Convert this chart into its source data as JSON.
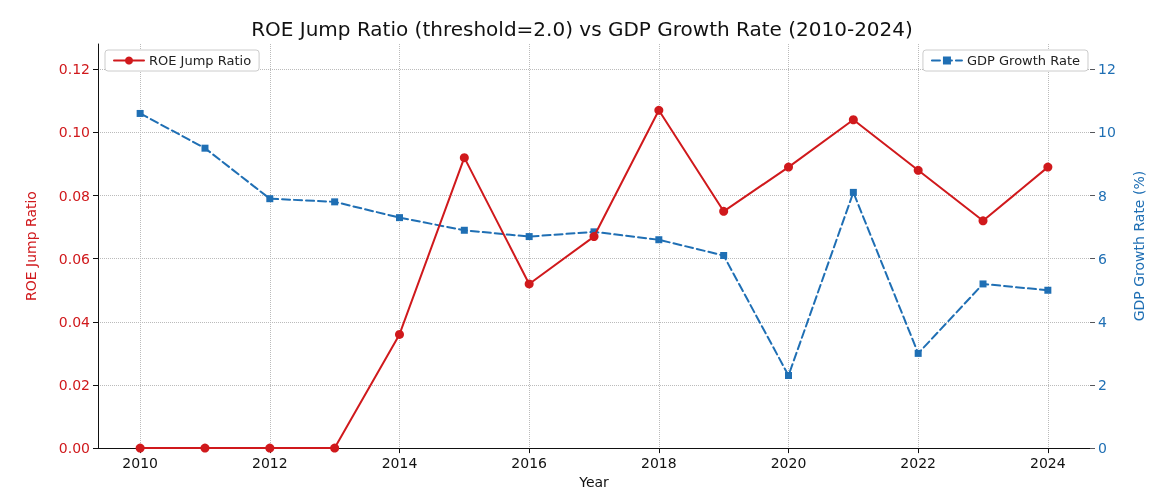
{
  "chart_data": {
    "type": "line",
    "title": "ROE Jump Ratio (threshold=2.0) vs GDP Growth Rate (2010-2024)",
    "xlabel": "Year",
    "ylabel": "ROE Jump Ratio",
    "y2label": "GDP Growth Rate (%)",
    "x": [
      2010,
      2011,
      2012,
      2013,
      2014,
      2015,
      2016,
      2017,
      2018,
      2019,
      2020,
      2021,
      2022,
      2023,
      2024
    ],
    "series": [
      {
        "name": "ROE Jump Ratio",
        "color": "#d0191c",
        "marker": "circle",
        "line_style": "solid",
        "values": [
          0,
          0,
          0,
          0,
          0.036,
          0.092,
          0.052,
          0.067,
          0.107,
          0.075,
          0.089,
          0.104,
          0.088,
          0.072,
          0.089
        ]
      },
      {
        "name": "GDP Growth Rate",
        "color": "#1f6fb4",
        "marker": "square",
        "line_style": "dashed",
        "axis": "y2",
        "values": [
          10.6,
          9.5,
          7.9,
          7.8,
          7.3,
          6.9,
          6.7,
          6.85,
          6.6,
          6.1,
          2.3,
          8.1,
          3.0,
          5.2,
          5.0
        ]
      }
    ],
    "xlim": [
      2009.35,
      2024.65
    ],
    "xticks": [
      2010,
      2012,
      2014,
      2016,
      2018,
      2020,
      2022,
      2024
    ],
    "ylim": [
      0,
      0.128
    ],
    "yticks": [
      {
        "value": 0,
        "label": "0.00"
      },
      0.02,
      0.04,
      0.06,
      0.08,
      {
        "value": 0.1,
        "label": "0.10"
      },
      0.12
    ],
    "y2lim": [
      0,
      12.8
    ],
    "y2ticks": [
      0,
      2,
      4,
      6,
      8,
      10,
      12
    ],
    "grid": true,
    "legend": "top"
  }
}
